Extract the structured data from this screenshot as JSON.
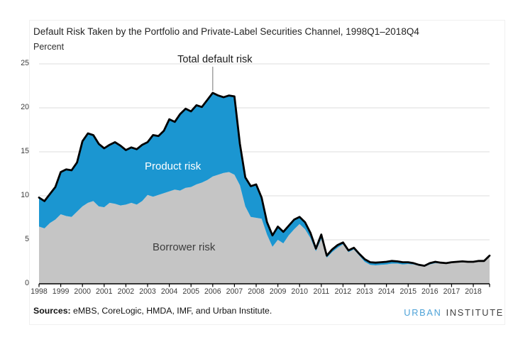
{
  "figure": {
    "title": "Default Risk Taken by the Portfolio and Private-Label Securities Channel, 1998Q1–2018Q4",
    "y_axis_unit_label": "Percent",
    "annotation": "Total default risk",
    "area_labels": {
      "product": "Product risk",
      "borrower": "Borrower risk"
    },
    "source_label": "Sources:",
    "source_text": " eMBS, CoreLogic, HMDA, IMF, and Urban Institute.",
    "logo": {
      "word1": "URBAN",
      "word2": "INSTITUTE"
    }
  },
  "colors": {
    "product_blue": "#1b96d1",
    "borrower_gray": "#c5c5c5",
    "total_line": "#000000",
    "gridline": "#dcdcdc",
    "axis": "#000000",
    "annotation_pointer": "#8c8c8c",
    "logo_blue": "#4fa3d8",
    "logo_dark": "#3f3f3f"
  },
  "chart_data": {
    "type": "area",
    "stacked": true,
    "title": "Default Risk Taken by the Portfolio and Private-Label Securities Channel, 1998Q1–2018Q4",
    "xlabel": "",
    "ylabel": "Percent",
    "ylim": [
      0,
      25
    ],
    "yticks": [
      25,
      20,
      15,
      10,
      5,
      0
    ],
    "grid": "horizontal",
    "legend_position": "labels-on-areas",
    "x_start": "1998Q1",
    "x_end": "2018Q4",
    "points_per_year": 4,
    "x_year_labels": [
      "1998",
      "1999",
      "2000",
      "2001",
      "2002",
      "2003",
      "2004",
      "2005",
      "2006",
      "2007",
      "2008",
      "2009",
      "2010",
      "2011",
      "2012",
      "2013",
      "2014",
      "2015",
      "2016",
      "2017",
      "2018"
    ],
    "series": [
      {
        "name": "Borrower risk",
        "color": "#c5c5c5",
        "values": [
          6.5,
          6.3,
          6.9,
          7.3,
          7.9,
          7.7,
          7.6,
          8.2,
          8.8,
          9.2,
          9.4,
          8.8,
          8.7,
          9.2,
          9.1,
          8.9,
          9.0,
          9.2,
          9.0,
          9.4,
          10.1,
          9.9,
          10.1,
          10.3,
          10.5,
          10.7,
          10.6,
          10.9,
          11.0,
          11.3,
          11.5,
          11.8,
          12.2,
          12.4,
          12.6,
          12.7,
          12.4,
          11.2,
          8.8,
          7.6,
          7.5,
          7.4,
          5.6,
          4.2,
          5.0,
          4.6,
          5.5,
          6.2,
          6.8,
          6.2,
          5.2,
          3.7,
          5.1,
          2.95,
          3.6,
          4.1,
          4.5,
          3.6,
          3.9,
          3.2,
          2.5,
          2.15,
          2.1,
          2.15,
          2.2,
          2.3,
          2.3,
          2.2,
          2.25,
          2.2,
          2.05,
          1.95,
          2.2,
          2.35,
          2.3,
          2.3,
          2.4,
          2.42,
          2.45,
          2.42,
          2.45,
          2.5,
          2.55,
          3.1
        ]
      },
      {
        "name": "Product risk",
        "color": "#1b96d1",
        "values": [
          3.3,
          3.1,
          3.3,
          3.7,
          4.8,
          5.3,
          5.3,
          5.6,
          7.4,
          7.9,
          7.5,
          7.1,
          6.7,
          6.6,
          7.0,
          6.8,
          6.2,
          6.3,
          6.3,
          6.4,
          6.0,
          7.0,
          6.7,
          7.1,
          8.2,
          7.7,
          8.7,
          9.0,
          8.6,
          9.0,
          8.6,
          9.1,
          9.5,
          9.0,
          8.6,
          8.7,
          8.9,
          4.7,
          3.3,
          3.5,
          3.8,
          2.4,
          1.4,
          1.3,
          1.5,
          1.3,
          1.1,
          1.1,
          0.8,
          0.8,
          0.6,
          0.3,
          0.5,
          0.25,
          0.3,
          0.3,
          0.2,
          0.2,
          0.2,
          0.2,
          0.3,
          0.3,
          0.3,
          0.3,
          0.3,
          0.3,
          0.25,
          0.25,
          0.2,
          0.15,
          0.1,
          0.1,
          0.15,
          0.15,
          0.1,
          0.05,
          0.05,
          0.08,
          0.1,
          0.08,
          0.05,
          0.1,
          0.05,
          0.1
        ]
      },
      {
        "name": "Total default risk",
        "color": "#000000",
        "note": "black line equals Borrower risk + Product risk",
        "values": [
          9.8,
          9.4,
          10.2,
          11.0,
          12.7,
          13.0,
          12.9,
          13.8,
          16.2,
          17.1,
          16.9,
          15.9,
          15.4,
          15.8,
          16.1,
          15.7,
          15.2,
          15.5,
          15.3,
          15.8,
          16.1,
          16.9,
          16.8,
          17.4,
          18.7,
          18.4,
          19.3,
          19.9,
          19.6,
          20.3,
          20.1,
          20.9,
          21.7,
          21.4,
          21.2,
          21.4,
          21.3,
          15.9,
          12.1,
          11.1,
          11.3,
          9.8,
          7.0,
          5.5,
          6.5,
          5.9,
          6.6,
          7.3,
          7.6,
          7.0,
          5.8,
          4.0,
          5.6,
          3.2,
          3.9,
          4.4,
          4.7,
          3.8,
          4.1,
          3.4,
          2.8,
          2.45,
          2.4,
          2.45,
          2.5,
          2.6,
          2.55,
          2.45,
          2.45,
          2.35,
          2.15,
          2.05,
          2.35,
          2.5,
          2.4,
          2.35,
          2.45,
          2.5,
          2.55,
          2.5,
          2.5,
          2.6,
          2.6,
          3.2
        ]
      }
    ],
    "annotation": {
      "text": "Total default risk",
      "points_to": {
        "quarter": "2006Q1",
        "value": 21.7
      }
    }
  }
}
